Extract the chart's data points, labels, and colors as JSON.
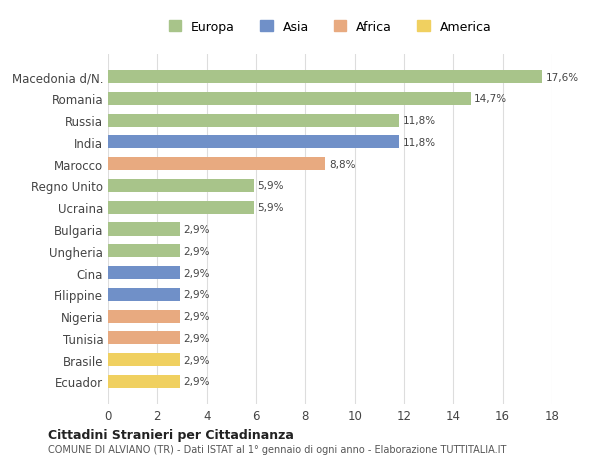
{
  "categories": [
    "Macedonia d/N.",
    "Romania",
    "Russia",
    "India",
    "Marocco",
    "Regno Unito",
    "Ucraina",
    "Bulgaria",
    "Ungheria",
    "Cina",
    "Filippine",
    "Nigeria",
    "Tunisia",
    "Brasile",
    "Ecuador"
  ],
  "values": [
    17.6,
    14.7,
    11.8,
    11.8,
    8.8,
    5.9,
    5.9,
    2.9,
    2.9,
    2.9,
    2.9,
    2.9,
    2.9,
    2.9,
    2.9
  ],
  "labels": [
    "17,6%",
    "14,7%",
    "11,8%",
    "11,8%",
    "8,8%",
    "5,9%",
    "5,9%",
    "2,9%",
    "2,9%",
    "2,9%",
    "2,9%",
    "2,9%",
    "2,9%",
    "2,9%",
    "2,9%"
  ],
  "continents": [
    "Europa",
    "Europa",
    "Europa",
    "Asia",
    "Africa",
    "Europa",
    "Europa",
    "Europa",
    "Europa",
    "Asia",
    "Asia",
    "Africa",
    "Africa",
    "America",
    "America"
  ],
  "colors": {
    "Europa": "#a8c48a",
    "Asia": "#7090c8",
    "Africa": "#e8aa80",
    "America": "#f0d060"
  },
  "legend_order": [
    "Europa",
    "Asia",
    "Africa",
    "America"
  ],
  "title1": "Cittadini Stranieri per Cittadinanza",
  "title2": "COMUNE DI ALVIANO (TR) - Dati ISTAT al 1° gennaio di ogni anno - Elaborazione TUTTITALIA.IT",
  "xlim": [
    0,
    18
  ],
  "xticks": [
    0,
    2,
    4,
    6,
    8,
    10,
    12,
    14,
    16,
    18
  ],
  "bg_color": "#ffffff",
  "grid_color": "#dddddd"
}
